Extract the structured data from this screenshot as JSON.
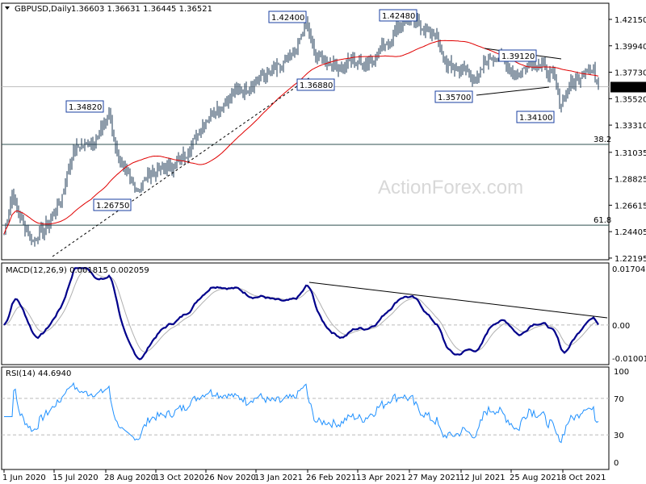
{
  "header": {
    "symbol": "GBPUSD,Daily",
    "ohlc": "1.36603 1.36631 1.36445 1.36521"
  },
  "watermark": "ActionForex.com",
  "chart_data": [
    {
      "type": "ohlc",
      "title": "GBPUSD,Daily",
      "ylim": [
        1.21,
        1.43
      ],
      "y_ticks": [
        "1.42150",
        "1.39940",
        "1.37730",
        "1.35520",
        "1.33310",
        "1.31035",
        "1.28825",
        "1.26615",
        "1.24405",
        "1.22195"
      ],
      "y_tick_values": [
        1.4215,
        1.3994,
        1.3773,
        1.3552,
        1.3331,
        1.31035,
        1.28825,
        1.26615,
        1.24405,
        1.22195
      ],
      "current_price": "1.36521",
      "current_value": 1.36521,
      "x_ticks": [
        "1 Jun 2020",
        "15 Jul 2020",
        "28 Aug 2020",
        "13 Oct 2020",
        "26 Nov 2020",
        "13 Jan 2021",
        "26 Feb 2021",
        "13 Apr 2021",
        "27 May 2021",
        "12 Jul 2021",
        "25 Aug 2021",
        "8 Oct 2021"
      ],
      "x_tick_bar_index": [
        0,
        31,
        63,
        94,
        125,
        156,
        188,
        219,
        251,
        283,
        314,
        346
      ],
      "bar_count": 369,
      "close_path_bar_index": [
        0,
        5,
        10,
        18,
        28,
        35,
        43,
        50,
        58,
        65,
        70,
        75,
        83,
        90,
        98,
        105,
        113,
        120,
        128,
        135,
        143,
        150,
        158,
        165,
        173,
        180,
        187,
        193,
        200,
        208,
        215,
        223,
        230,
        238,
        245,
        253,
        260,
        268,
        272,
        278,
        285,
        293,
        298,
        303,
        310,
        318,
        325,
        333,
        340,
        345,
        350,
        355,
        360,
        365,
        368
      ],
      "close_path": [
        1.2421,
        1.2759,
        1.2556,
        1.2354,
        1.2523,
        1.2691,
        1.3129,
        1.3163,
        1.323,
        1.3433,
        1.3096,
        1.2927,
        1.2792,
        1.2927,
        1.2961,
        1.2995,
        1.3096,
        1.3264,
        1.3433,
        1.35,
        1.3601,
        1.3635,
        1.3736,
        1.377,
        1.3837,
        1.3939,
        1.4175,
        1.3905,
        1.3871,
        1.3804,
        1.3871,
        1.3837,
        1.3905,
        1.404,
        1.4175,
        1.4208,
        1.4141,
        1.4073,
        1.3871,
        1.3804,
        1.3804,
        1.3703,
        1.3871,
        1.3905,
        1.3871,
        1.3736,
        1.3871,
        1.3837,
        1.3736,
        1.35,
        1.3669,
        1.3703,
        1.3804,
        1.377,
        1.3652
      ],
      "moving_average": "SMA 55 (red)",
      "annotations": [
        "1.42400",
        "1.42480",
        "1.34820",
        "1.26750",
        "1.36880",
        "1.39120",
        "1.35700",
        "1.34100"
      ],
      "fib_levels": [
        {
          "label": "38.2",
          "value": 1.317
        },
        {
          "label": "61.8",
          "value": 1.2495
        }
      ]
    },
    {
      "type": "line",
      "title": "MACD(12,26,9) 0.001815 0.002059",
      "ylim": [
        -0.010013,
        0.017047
      ],
      "y_ticks": [
        "0.017047",
        "0.00",
        "-0.010013"
      ]
    },
    {
      "type": "line",
      "title": "RSI(14) 44.6940",
      "ylim": [
        0,
        100
      ],
      "y_ticks": [
        "100",
        "70",
        "30",
        "0"
      ]
    }
  ]
}
